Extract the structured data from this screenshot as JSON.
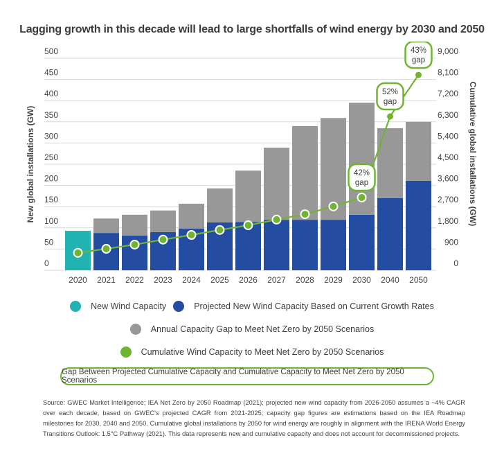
{
  "title": "Lagging growth in this decade will lead to large shortfalls of wind energy by 2030 and 2050",
  "colors": {
    "new_wind": "#21b3b1",
    "projected": "#244ca0",
    "gap": "#989898",
    "cumulative": "#6fb532",
    "grid": "#d9d9d9",
    "text": "#444444"
  },
  "chart_data": {
    "type": "bar",
    "stacked": true,
    "title": "Lagging growth in this decade will lead to large shortfalls of wind energy by 2030 and 2050",
    "categories": [
      "2020",
      "2021",
      "2022",
      "2023",
      "2024",
      "2025",
      "2026",
      "2027",
      "2028",
      "2029",
      "2030",
      "2040",
      "2050"
    ],
    "ylabel": "New global installations (GW)",
    "ylabel_right": "Cumulative global installations (GW)",
    "ylim": [
      0,
      500
    ],
    "yticks": [
      "0",
      "50",
      "100",
      "150",
      "200",
      "250",
      "300",
      "350",
      "400",
      "450",
      "500"
    ],
    "ylim_right": [
      0,
      9000
    ],
    "yticks_right": [
      "0",
      "900",
      "1,800",
      "2,700",
      "3,600",
      "4,500",
      "5,400",
      "6,300",
      "7,200",
      "8,100",
      "9,000"
    ],
    "grid": true,
    "series": [
      {
        "name": "New Wind Capacity",
        "type": "bar",
        "axis": "left",
        "values": [
          93,
          null,
          null,
          null,
          null,
          null,
          null,
          null,
          null,
          null,
          null,
          null,
          null
        ]
      },
      {
        "name": "Projected New Wind Capacity Based on Current Growth Rates",
        "type": "bar",
        "axis": "left",
        "values": [
          null,
          88,
          82,
          90,
          98,
          113,
          114,
          119,
          119,
          119,
          131,
          170,
          211
        ]
      },
      {
        "name": "Annual Capacity Gap to Meet Net Zero by 2050 Scenarios",
        "type": "bar",
        "axis": "left",
        "values": [
          null,
          34,
          49,
          51,
          59,
          80,
          121,
          170,
          221,
          240,
          264,
          165,
          139
        ]
      },
      {
        "name": "Cumulative Wind Capacity to Meet Net Zero by 2050 Scenarios",
        "type": "line",
        "axis": "right",
        "values": [
          740,
          910,
          1090,
          1300,
          1500,
          1710,
          1910,
          2150,
          2380,
          2710,
          3090,
          6530,
          8290
        ]
      }
    ],
    "annotations": [
      {
        "category": "2030",
        "label_line1": "42%",
        "label_line2": "gap"
      },
      {
        "category": "2040",
        "label_line1": "52%",
        "label_line2": "gap"
      },
      {
        "category": "2050",
        "label_line1": "43%",
        "label_line2": "gap"
      }
    ],
    "legend": [
      "New Wind Capacity",
      "Projected New Wind Capacity Based on Current Growth Rates",
      "Annual Capacity Gap to Meet Net Zero by 2050 Scenarios",
      "Cumulative Wind Capacity to Meet Net Zero by 2050 Scenarios"
    ],
    "legend_placement": "bottom"
  },
  "gap_box_label": "Gap Between Projected Cumulative Capacity and Cumulative Capacity to Meet Net Zero by 2050 Scenarios",
  "source": "Source: GWEC Market Intelligence; IEA Net Zero by 2050 Roadmap (2021); projected new wind capacity from 2026-2050 assumes a ~4% CAGR over each decade, based on GWEC's projected CAGR from 2021-2025; capacity gap figures are estimations based on the IEA Roadmap milestones for 2030, 2040 and 2050. Cumulative global installations by 2050 for wind energy are roughly in alignment with the IRENA World Energy Transitions Outlook: 1.5°C Pathway (2021). This data represents new and cumulative capacity and does not account for decommissioned projects."
}
